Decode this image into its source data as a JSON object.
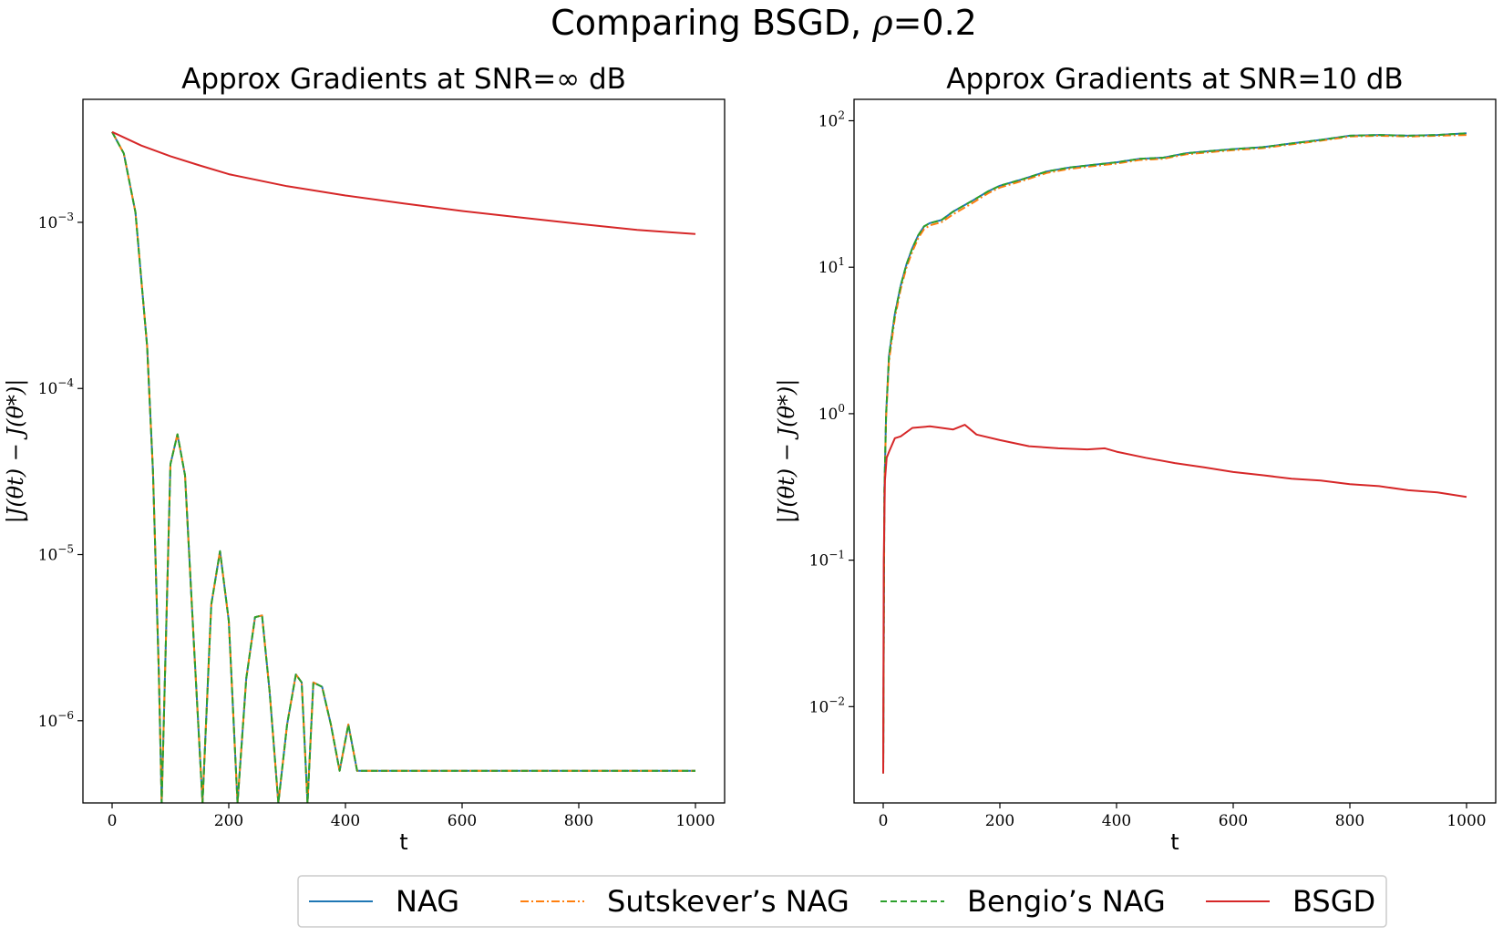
{
  "figure": {
    "title_prefix": "Comparing BSGD, ",
    "title_rho": "ρ",
    "title_suffix": "=0.2"
  },
  "legend": [
    {
      "label": "NAG",
      "color": "#1f77b4",
      "dash": "solid"
    },
    {
      "label": "Sutskever’s NAG",
      "color": "#ff7f0e",
      "dash": "dashdot"
    },
    {
      "label": "Bengio’s NAG",
      "color": "#2ca02c",
      "dash": "dashed"
    },
    {
      "label": "BSGD",
      "color": "#d62728",
      "dash": "solid"
    }
  ],
  "chart_data": [
    {
      "type": "line",
      "title": "Approx Gradients at SNR=∞ dB",
      "xlabel": "t",
      "ylabel": "|J(θt) − J(θ*)|",
      "yscale": "log",
      "xlim": [
        -50,
        1050
      ],
      "ylim": [
        3.2e-07,
        0.0055
      ],
      "xticks": [
        0,
        200,
        400,
        600,
        800,
        1000
      ],
      "yticks": [
        {
          "value": 1e-06,
          "base": "10",
          "exp": "−6"
        },
        {
          "value": 1e-05,
          "base": "10",
          "exp": "−5"
        },
        {
          "value": 0.0001,
          "base": "10",
          "exp": "−4"
        },
        {
          "value": 0.001,
          "base": "10",
          "exp": "−3"
        }
      ],
      "grid": false,
      "series": [
        {
          "name": "NAG",
          "x": [
            0,
            20,
            40,
            60,
            70,
            80,
            85,
            100,
            112,
            125,
            140,
            155,
            170,
            185,
            200,
            215,
            230,
            245,
            257,
            270,
            285,
            300,
            315,
            325,
            335,
            345,
            360,
            375,
            390,
            405,
            420,
            500,
            600,
            700,
            800,
            900,
            1000
          ],
          "y": [
            0.0035,
            0.0026,
            0.00115,
            0.00018,
            3.2e-05,
            2e-06,
            3.2e-07,
            3.5e-05,
            5.3e-05,
            3e-05,
            3e-06,
            3.2e-07,
            5e-06,
            1.05e-05,
            4e-06,
            3.2e-07,
            1.8e-06,
            4.2e-06,
            4.3e-06,
            1.5e-06,
            3.2e-07,
            9.5e-07,
            1.9e-06,
            1.7e-06,
            3.2e-07,
            1.7e-06,
            1.6e-06,
            9.5e-07,
            5e-07,
            9.5e-07,
            5e-07,
            5e-07,
            5e-07,
            5e-07,
            5e-07,
            5e-07,
            5e-07
          ]
        },
        {
          "name": "Sutskever’s NAG",
          "x": [
            0,
            20,
            40,
            60,
            70,
            80,
            85,
            100,
            112,
            125,
            140,
            155,
            170,
            185,
            200,
            215,
            230,
            245,
            257,
            270,
            285,
            300,
            315,
            325,
            335,
            345,
            360,
            375,
            390,
            405,
            420,
            500,
            600,
            700,
            800,
            900,
            1000
          ],
          "y": [
            0.0035,
            0.0026,
            0.00115,
            0.00018,
            3.2e-05,
            2e-06,
            3.2e-07,
            3.5e-05,
            5.3e-05,
            3e-05,
            3e-06,
            3.2e-07,
            5e-06,
            1.05e-05,
            4e-06,
            3.2e-07,
            1.8e-06,
            4.2e-06,
            4.3e-06,
            1.5e-06,
            3.2e-07,
            9.5e-07,
            1.9e-06,
            1.7e-06,
            3.2e-07,
            1.7e-06,
            1.6e-06,
            9.5e-07,
            5e-07,
            9.5e-07,
            5e-07,
            5e-07,
            5e-07,
            5e-07,
            5e-07,
            5e-07,
            5e-07
          ]
        },
        {
          "name": "Bengio’s NAG",
          "x": [
            0,
            20,
            40,
            60,
            70,
            80,
            85,
            100,
            112,
            125,
            140,
            155,
            170,
            185,
            200,
            215,
            230,
            245,
            257,
            270,
            285,
            300,
            315,
            325,
            335,
            345,
            360,
            375,
            390,
            405,
            420,
            500,
            600,
            700,
            800,
            900,
            1000
          ],
          "y": [
            0.0035,
            0.0026,
            0.00115,
            0.00018,
            3.2e-05,
            2e-06,
            3.2e-07,
            3.5e-05,
            5.3e-05,
            3e-05,
            3e-06,
            3.2e-07,
            5e-06,
            1.05e-05,
            4e-06,
            3.2e-07,
            1.8e-06,
            4.2e-06,
            4.3e-06,
            1.5e-06,
            3.2e-07,
            9.5e-07,
            1.9e-06,
            1.7e-06,
            3.2e-07,
            1.7e-06,
            1.6e-06,
            9.5e-07,
            5e-07,
            9.5e-07,
            5e-07,
            5e-07,
            5e-07,
            5e-07,
            5e-07,
            5e-07,
            5e-07
          ]
        },
        {
          "name": "BSGD",
          "x": [
            0,
            50,
            100,
            150,
            200,
            300,
            400,
            500,
            600,
            700,
            800,
            900,
            1000
          ],
          "y": [
            0.0035,
            0.0029,
            0.0025,
            0.0022,
            0.00195,
            0.00165,
            0.00145,
            0.0013,
            0.00117,
            0.00107,
            0.00098,
            0.0009,
            0.00085
          ]
        }
      ]
    },
    {
      "type": "line",
      "title": "Approx Gradients at SNR=10 dB",
      "xlabel": "t",
      "ylabel": "|J(θt) − J(θ*)|",
      "yscale": "log",
      "xlim": [
        -50,
        1050
      ],
      "ylim": [
        0.0022,
        140
      ],
      "xticks": [
        0,
        200,
        400,
        600,
        800,
        1000
      ],
      "yticks": [
        {
          "value": 0.01,
          "base": "10",
          "exp": "−2"
        },
        {
          "value": 0.1,
          "base": "10",
          "exp": "−1"
        },
        {
          "value": 1,
          "base": "10",
          "exp": "0"
        },
        {
          "value": 10,
          "base": "10",
          "exp": "1"
        },
        {
          "value": 100,
          "base": "10",
          "exp": "2"
        }
      ],
      "grid": false,
      "series": [
        {
          "name": "NAG",
          "x": [
            0,
            2,
            5,
            10,
            20,
            30,
            40,
            50,
            60,
            70,
            80,
            100,
            120,
            150,
            180,
            200,
            240,
            280,
            320,
            360,
            400,
            440,
            480,
            520,
            560,
            600,
            650,
            700,
            750,
            800,
            850,
            900,
            950,
            1000
          ],
          "y": [
            0.0035,
            0.3,
            1.0,
            2.5,
            4.8,
            7.5,
            10.5,
            13.5,
            16.5,
            19,
            20,
            21,
            24,
            28,
            33,
            36,
            40,
            45,
            48,
            50,
            52,
            55,
            56,
            60,
            62,
            64,
            66,
            70,
            74,
            79,
            80,
            79,
            80,
            82
          ]
        },
        {
          "name": "Sutskever’s NAG",
          "x": [
            0,
            2,
            5,
            10,
            20,
            30,
            40,
            50,
            60,
            70,
            80,
            100,
            120,
            150,
            180,
            200,
            240,
            280,
            320,
            360,
            400,
            440,
            480,
            520,
            560,
            600,
            650,
            700,
            750,
            800,
            850,
            900,
            950,
            1000
          ],
          "y": [
            0.0035,
            0.28,
            0.95,
            2.3,
            4.5,
            7.1,
            10,
            12.8,
            15.8,
            18.2,
            19.3,
            20.3,
            23,
            27,
            32,
            35,
            39,
            44,
            47,
            49,
            51,
            54,
            55,
            59,
            61,
            63,
            65,
            69,
            73,
            78,
            79,
            78,
            79,
            80
          ]
        },
        {
          "name": "Bengio’s NAG",
          "x": [
            0,
            2,
            5,
            10,
            20,
            30,
            40,
            50,
            60,
            70,
            80,
            100,
            120,
            150,
            180,
            200,
            240,
            280,
            320,
            360,
            400,
            440,
            480,
            520,
            560,
            600,
            650,
            700,
            750,
            800,
            850,
            900,
            950,
            1000
          ],
          "y": [
            0.0035,
            0.3,
            1.0,
            2.5,
            4.8,
            7.5,
            10.5,
            13.5,
            16.5,
            19,
            20,
            21,
            24,
            28,
            33,
            36,
            40,
            45,
            48,
            50,
            52,
            55,
            56,
            60,
            62,
            64,
            66,
            70,
            74,
            79,
            80,
            79,
            80,
            82
          ]
        },
        {
          "name": "BSGD",
          "x": [
            0,
            1,
            3,
            6,
            10,
            20,
            30,
            50,
            80,
            100,
            120,
            140,
            160,
            200,
            250,
            300,
            350,
            380,
            400,
            450,
            500,
            550,
            600,
            650,
            700,
            750,
            800,
            850,
            900,
            950,
            1000
          ],
          "y": [
            0.0035,
            0.1,
            0.35,
            0.5,
            0.55,
            0.68,
            0.7,
            0.8,
            0.82,
            0.8,
            0.78,
            0.84,
            0.72,
            0.66,
            0.6,
            0.58,
            0.57,
            0.58,
            0.55,
            0.5,
            0.46,
            0.43,
            0.4,
            0.38,
            0.36,
            0.35,
            0.33,
            0.32,
            0.3,
            0.29,
            0.27
          ]
        }
      ]
    }
  ]
}
